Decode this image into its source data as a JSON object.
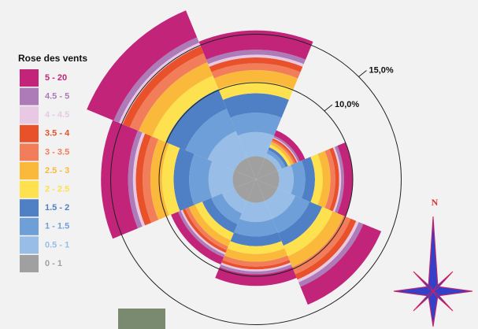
{
  "chart_data": {
    "type": "windrose",
    "legend_title": "Rose des vents",
    "rlim": [
      0,
      20
    ],
    "rticks": [
      {
        "value": 10,
        "label": "10,0%"
      },
      {
        "value": 15,
        "label": "15,0%"
      }
    ],
    "compass_label": "N",
    "series": [
      {
        "name": "5 - 20",
        "color": "#c2247a",
        "values": [
          2,
          0.6,
          0.9,
          2,
          1.2,
          0.8,
          2.8,
          3
        ]
      },
      {
        "name": "4.5 - 5",
        "color": "#ad7bb8",
        "values": [
          0.5,
          0.2,
          0.3,
          0.5,
          0.3,
          0.3,
          0.5,
          0.6
        ]
      },
      {
        "name": "4 - 4.5",
        "color": "#e9c8e4",
        "values": [
          0.3,
          0.1,
          0.2,
          0.3,
          0.2,
          0.2,
          0.3,
          0.4
        ]
      },
      {
        "name": "3.5 - 4",
        "color": "#e8512a",
        "values": [
          0.6,
          0.2,
          0.4,
          0.6,
          0.3,
          0.3,
          0.7,
          0.8
        ]
      },
      {
        "name": "3 - 3.5",
        "color": "#f27d5b",
        "values": [
          0.7,
          0.2,
          0.5,
          0.8,
          0.5,
          0.4,
          0.8,
          1
        ]
      },
      {
        "name": "2.5 - 3",
        "color": "#fbb93b",
        "values": [
          1.2,
          0.3,
          0.8,
          1.2,
          0.8,
          0.7,
          1.2,
          1.5
        ]
      },
      {
        "name": "2 - 2.5",
        "color": "#fde14e",
        "values": [
          1.2,
          0.3,
          0.8,
          1.2,
          0.8,
          0.8,
          1.2,
          1.5
        ]
      },
      {
        "name": "1.5 - 2",
        "color": "#4f80c5",
        "values": [
          2,
          0.3,
          1,
          1.4,
          1,
          1,
          1.6,
          2.2
        ]
      },
      {
        "name": "1 - 1.5",
        "color": "#6f9fd8",
        "values": [
          2,
          0.4,
          1.2,
          1.6,
          1.5,
          1.2,
          2,
          2.5
        ]
      },
      {
        "name": "0.5 - 1",
        "color": "#98bde6",
        "values": [
          2.5,
          0.5,
          1.5,
          2,
          2,
          1.4,
          2.5,
          3
        ]
      },
      {
        "name": "0 - 1",
        "color": "#a0a0a0",
        "values": [
          2.4,
          2.4,
          2.4,
          2.4,
          2.4,
          2.4,
          2.4,
          2.4
        ]
      }
    ]
  }
}
